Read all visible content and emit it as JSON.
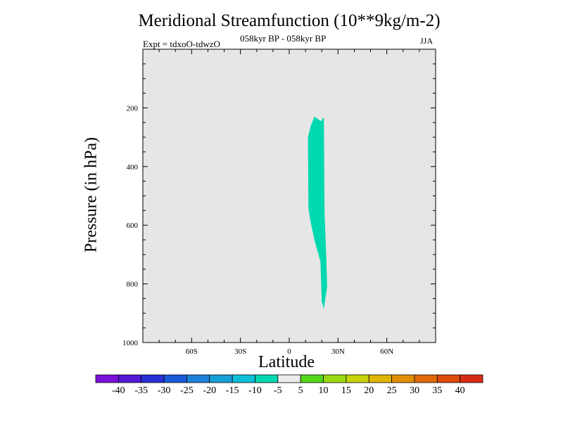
{
  "chart_data": {
    "type": "contour",
    "title": "Meridional Streamfunction (10**9kg/m-2)",
    "subtitle": "058kyr BP - 058kyr BP",
    "experiment": "Expt = tdxoO-tdwzO",
    "season": "JJA",
    "xlabel": "Latitude",
    "ylabel": "Pressure (in hPa)",
    "xlim": [
      -90,
      90
    ],
    "ylim": [
      0,
      1000
    ],
    "y_inverted": true,
    "x_ticks": [
      {
        "value": -60,
        "label": "60S"
      },
      {
        "value": -30,
        "label": "30S"
      },
      {
        "value": 0,
        "label": "0"
      },
      {
        "value": 30,
        "label": "30N"
      },
      {
        "value": 60,
        "label": "60N"
      }
    ],
    "y_ticks": [
      {
        "value": 200,
        "label": "200"
      },
      {
        "value": 400,
        "label": "400"
      },
      {
        "value": 600,
        "label": "600"
      },
      {
        "value": 800,
        "label": "800"
      },
      {
        "value": 1000,
        "label": "1000"
      }
    ],
    "background_color": "#e6e6e6",
    "filled_region": {
      "range": "-10 to -5",
      "color": "#00d8b0",
      "outline": [
        [
          15.5,
          230
        ],
        [
          19.5,
          245
        ],
        [
          21.3,
          232
        ],
        [
          21.7,
          560
        ],
        [
          22.7,
          700
        ],
        [
          23.3,
          810
        ],
        [
          21.3,
          885
        ],
        [
          20.0,
          860
        ],
        [
          19.2,
          725
        ],
        [
          15.5,
          650
        ],
        [
          12.8,
          580
        ],
        [
          11.8,
          540
        ],
        [
          11.5,
          300
        ],
        [
          13.3,
          260
        ]
      ]
    },
    "colorbar": {
      "labels": [
        "-40",
        "-35",
        "-30",
        "-25",
        "-20",
        "-15",
        "-10",
        "-5",
        "5",
        "10",
        "15",
        "20",
        "25",
        "30",
        "35",
        "40"
      ],
      "colors": [
        "#7b10d8",
        "#5418d8",
        "#2830d8",
        "#1a58d8",
        "#1d80d8",
        "#16a0d8",
        "#0cc0d8",
        "#00d8b0",
        "#ececec",
        "#52d81a",
        "#9cd811",
        "#c8d40a",
        "#e0b400",
        "#e29000",
        "#e06a08",
        "#de4a0a",
        "#d82a14"
      ]
    }
  }
}
